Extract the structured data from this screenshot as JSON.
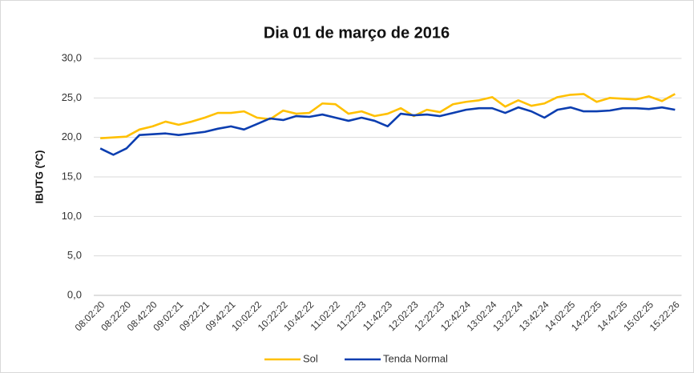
{
  "chart_data": {
    "type": "line",
    "title": "Dia 01 de março de 2016",
    "y_label": "IBUTG (ºC)",
    "categories": [
      "08:02:20",
      null,
      "08:22:20",
      null,
      "08:42:20",
      null,
      "09:02:21",
      null,
      "09:22:21",
      null,
      "09:42:21",
      null,
      "10:02:22",
      null,
      "10:22:22",
      null,
      "10:42:22",
      null,
      "11:02:22",
      null,
      "11:22:23",
      null,
      "11:42:23",
      null,
      "12:02:23",
      null,
      "12:22:23",
      null,
      "12:42:24",
      null,
      "13:02:24",
      null,
      "13:22:24",
      null,
      "13:42:24",
      null,
      "14:02:25",
      null,
      "14:22:25",
      null,
      "14:42:25",
      null,
      "15:02:25",
      null,
      "15:22:26"
    ],
    "series": [
      {
        "name": "Sol",
        "color": "#ffc000",
        "values": [
          19.9,
          20.0,
          20.1,
          21.0,
          21.4,
          22.0,
          21.6,
          22.0,
          22.5,
          23.1,
          23.1,
          23.3,
          22.5,
          22.3,
          23.4,
          23.0,
          23.1,
          24.3,
          24.2,
          23.0,
          23.3,
          22.7,
          23.0,
          23.7,
          22.7,
          23.5,
          23.2,
          24.2,
          24.5,
          24.7,
          25.1,
          23.9,
          24.7,
          24.0,
          24.3,
          25.1,
          25.4,
          25.5,
          24.5,
          25.0,
          24.9,
          24.8,
          25.2,
          24.6,
          25.5
        ]
      },
      {
        "name": "Tenda Normal",
        "color": "#0c3eb0",
        "values": [
          18.6,
          17.8,
          18.6,
          20.3,
          20.4,
          20.5,
          20.3,
          20.5,
          20.7,
          21.1,
          21.4,
          21.0,
          21.7,
          22.4,
          22.2,
          22.7,
          22.6,
          22.9,
          22.5,
          22.1,
          22.5,
          22.1,
          21.4,
          23.0,
          22.8,
          22.9,
          22.7,
          23.1,
          23.5,
          23.7,
          23.7,
          23.1,
          23.8,
          23.3,
          22.5,
          23.5,
          23.8,
          23.3,
          23.3,
          23.4,
          23.7,
          23.7,
          23.6,
          23.8,
          23.5
        ]
      }
    ],
    "ylim": [
      0,
      30
    ],
    "yticks": [
      {
        "value": 0,
        "label": "0,0"
      },
      {
        "value": 5,
        "label": "5,0"
      },
      {
        "value": 10,
        "label": "10,0"
      },
      {
        "value": 15,
        "label": "15,0"
      },
      {
        "value": 20,
        "label": "20,0"
      },
      {
        "value": 25,
        "label": "25,0"
      },
      {
        "value": 30,
        "label": "30,0"
      }
    ],
    "grid": true,
    "legend": "bottom"
  }
}
